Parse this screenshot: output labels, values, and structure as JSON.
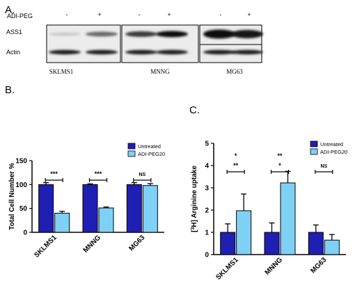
{
  "panel_a": {
    "label": "A.",
    "treatment_label": "ADI-PEG",
    "treatment_signs": [
      "-",
      "+",
      "-",
      "+",
      "-",
      "+"
    ],
    "row_labels": [
      "ASS1",
      "Actin"
    ],
    "cell_lines": [
      "SKLMS1",
      "MNNG",
      "MG63"
    ]
  },
  "panel_b": {
    "label": "B."
  },
  "panel_c": {
    "label": "C."
  },
  "colors": {
    "untreated": "#1f1fb4",
    "adi": "#7fd0f5"
  },
  "chart_data": [
    {
      "type": "bar",
      "categories": [
        "SKLMS1",
        "MNNG",
        "MG63"
      ],
      "ylabel": "Total Cell Number %",
      "xlabel": "",
      "ylim": [
        0,
        150
      ],
      "yticks": [
        0,
        50,
        100,
        150
      ],
      "legend": {
        "position": "top-right",
        "entries": [
          "Untreated",
          "ADI-PEG20"
        ]
      },
      "series": [
        {
          "name": "Untreated",
          "values": [
            100,
            100,
            100
          ],
          "errors": [
            4,
            1.5,
            4
          ]
        },
        {
          "name": "ADI-PEG20",
          "values": [
            40,
            51,
            98
          ],
          "errors": [
            4,
            2,
            4
          ]
        }
      ],
      "significance": [
        "***",
        "***",
        "NS"
      ]
    },
    {
      "type": "bar",
      "categories": [
        "SKLMS1",
        "MNNG",
        "MG63"
      ],
      "ylabel": "[3H] Arginine uptake",
      "xlabel": "",
      "ylim": [
        0,
        5
      ],
      "yticks": [
        0,
        1,
        2,
        3,
        4,
        5
      ],
      "legend": {
        "position": "top-right",
        "entries": [
          "Untreated",
          "ADI-PEG20"
        ]
      },
      "series": [
        {
          "name": "Untreated",
          "values": [
            1.0,
            1.0,
            1.0
          ],
          "errors": [
            0.38,
            0.42,
            0.33
          ]
        },
        {
          "name": "ADI-PEG20",
          "values": [
            1.97,
            3.22,
            0.65
          ],
          "errors": [
            0.75,
            0.52,
            0.25
          ]
        }
      ],
      "significance": [
        [
          "*",
          "**"
        ],
        [
          "**",
          "*"
        ],
        [
          "NS"
        ]
      ]
    }
  ]
}
